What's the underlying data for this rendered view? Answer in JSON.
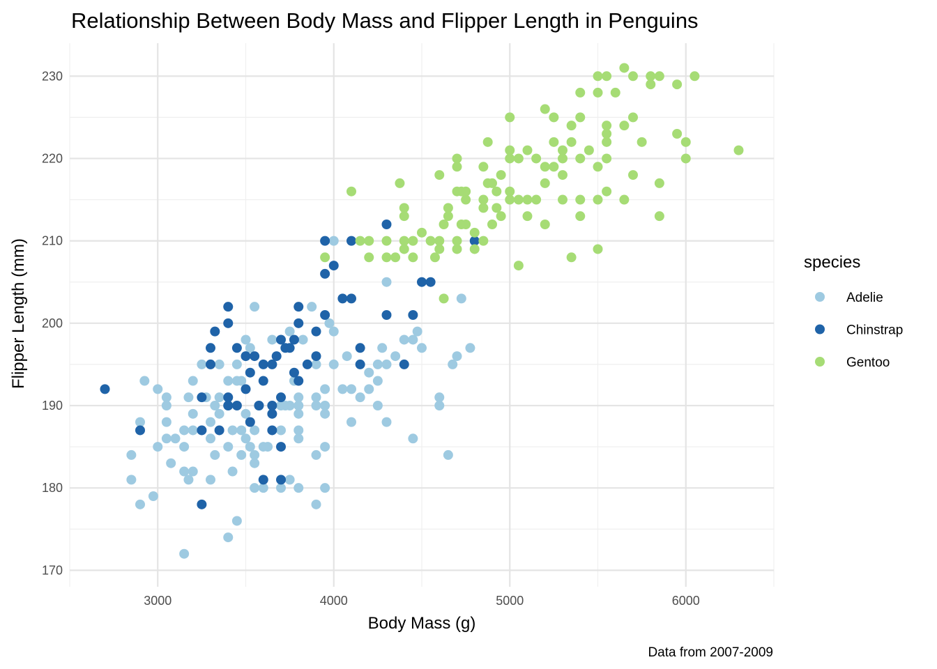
{
  "chart_data": {
    "type": "scatter",
    "title": "Relationship Between Body Mass and Flipper Length in Penguins",
    "xlabel": "Body Mass (g)",
    "ylabel": "Flipper Length (mm)",
    "caption": "Data from 2007-2009",
    "xlim": [
      2500,
      6500
    ],
    "ylim": [
      168,
      234
    ],
    "xticks": [
      3000,
      4000,
      5000,
      6000
    ],
    "yticks": [
      170,
      180,
      190,
      200,
      210,
      220,
      230
    ],
    "grid": true,
    "legend": {
      "title": "species",
      "placement": "right"
    },
    "series": [
      {
        "name": "Adelie",
        "color": "#9ecae1",
        "points": [
          [
            2850,
            181
          ],
          [
            2850,
            184
          ],
          [
            2900,
            178
          ],
          [
            2900,
            188
          ],
          [
            2925,
            193
          ],
          [
            2975,
            179
          ],
          [
            3000,
            185
          ],
          [
            3000,
            192
          ],
          [
            3050,
            186
          ],
          [
            3050,
            188
          ],
          [
            3050,
            190
          ],
          [
            3050,
            191
          ],
          [
            3075,
            183
          ],
          [
            3100,
            186
          ],
          [
            3150,
            172
          ],
          [
            3150,
            182
          ],
          [
            3150,
            185
          ],
          [
            3150,
            187
          ],
          [
            3175,
            181
          ],
          [
            3175,
            191
          ],
          [
            3200,
            182
          ],
          [
            3200,
            189
          ],
          [
            3200,
            193
          ],
          [
            3200,
            187
          ],
          [
            3250,
            195
          ],
          [
            3250,
            187
          ],
          [
            3275,
            191
          ],
          [
            3300,
            181
          ],
          [
            3300,
            186
          ],
          [
            3300,
            188
          ],
          [
            3300,
            195
          ],
          [
            3325,
            190
          ],
          [
            3325,
            184
          ],
          [
            3350,
            189
          ],
          [
            3350,
            191
          ],
          [
            3350,
            195
          ],
          [
            3400,
            174
          ],
          [
            3400,
            185
          ],
          [
            3400,
            193
          ],
          [
            3400,
            190
          ],
          [
            3425,
            182
          ],
          [
            3425,
            187
          ],
          [
            3450,
            176
          ],
          [
            3450,
            193
          ],
          [
            3450,
            195
          ],
          [
            3475,
            184
          ],
          [
            3475,
            187
          ],
          [
            3475,
            193
          ],
          [
            3500,
            186
          ],
          [
            3500,
            189
          ],
          [
            3500,
            198
          ],
          [
            3500,
            196
          ],
          [
            3525,
            185
          ],
          [
            3525,
            197
          ],
          [
            3550,
            180
          ],
          [
            3550,
            184
          ],
          [
            3550,
            187
          ],
          [
            3550,
            202
          ],
          [
            3550,
            183
          ],
          [
            3575,
            190
          ],
          [
            3600,
            180
          ],
          [
            3600,
            185
          ],
          [
            3625,
            185
          ],
          [
            3650,
            190
          ],
          [
            3650,
            198
          ],
          [
            3700,
            180
          ],
          [
            3700,
            190
          ],
          [
            3700,
            187
          ],
          [
            3725,
            190
          ],
          [
            3750,
            181
          ],
          [
            3750,
            190
          ],
          [
            3750,
            199
          ],
          [
            3775,
            193
          ],
          [
            3800,
            180
          ],
          [
            3800,
            186
          ],
          [
            3800,
            187
          ],
          [
            3800,
            189
          ],
          [
            3800,
            190
          ],
          [
            3800,
            191
          ],
          [
            3825,
            198
          ],
          [
            3875,
            202
          ],
          [
            3900,
            178
          ],
          [
            3900,
            184
          ],
          [
            3900,
            191
          ],
          [
            3900,
            190
          ],
          [
            3900,
            195
          ],
          [
            3950,
            180
          ],
          [
            3950,
            185
          ],
          [
            3950,
            189
          ],
          [
            3950,
            190
          ],
          [
            3950,
            192
          ],
          [
            3975,
            200
          ],
          [
            4000,
            199
          ],
          [
            4000,
            195
          ],
          [
            4000,
            210
          ],
          [
            4050,
            192
          ],
          [
            4075,
            196
          ],
          [
            4100,
            188
          ],
          [
            4100,
            192
          ],
          [
            4150,
            191
          ],
          [
            4200,
            192
          ],
          [
            4200,
            194
          ],
          [
            4250,
            190
          ],
          [
            4250,
            193
          ],
          [
            4250,
            195
          ],
          [
            4275,
            197
          ],
          [
            4300,
            188
          ],
          [
            4300,
            195
          ],
          [
            4300,
            205
          ],
          [
            4350,
            196
          ],
          [
            4400,
            198
          ],
          [
            4450,
            186
          ],
          [
            4450,
            198
          ],
          [
            4475,
            199
          ],
          [
            4500,
            197
          ],
          [
            4600,
            190
          ],
          [
            4600,
            191
          ],
          [
            4650,
            184
          ],
          [
            4675,
            195
          ],
          [
            4700,
            196
          ],
          [
            4725,
            203
          ],
          [
            4775,
            197
          ]
        ]
      },
      {
        "name": "Chinstrap",
        "color": "#1f63a8",
        "points": [
          [
            2700,
            192
          ],
          [
            2900,
            187
          ],
          [
            3250,
            191
          ],
          [
            3250,
            187
          ],
          [
            3250,
            178
          ],
          [
            3300,
            195
          ],
          [
            3300,
            197
          ],
          [
            3325,
            199
          ],
          [
            3350,
            187
          ],
          [
            3400,
            202
          ],
          [
            3400,
            200
          ],
          [
            3400,
            191
          ],
          [
            3400,
            190
          ],
          [
            3450,
            197
          ],
          [
            3450,
            190
          ],
          [
            3500,
            196
          ],
          [
            3500,
            192
          ],
          [
            3525,
            194
          ],
          [
            3525,
            188
          ],
          [
            3550,
            196
          ],
          [
            3575,
            190
          ],
          [
            3600,
            195
          ],
          [
            3600,
            181
          ],
          [
            3600,
            193
          ],
          [
            3650,
            195
          ],
          [
            3650,
            190
          ],
          [
            3650,
            187
          ],
          [
            3650,
            189
          ],
          [
            3675,
            196
          ],
          [
            3700,
            198
          ],
          [
            3700,
            191
          ],
          [
            3700,
            185
          ],
          [
            3700,
            181
          ],
          [
            3725,
            197
          ],
          [
            3750,
            197
          ],
          [
            3775,
            198
          ],
          [
            3775,
            194
          ],
          [
            3800,
            193
          ],
          [
            3800,
            200
          ],
          [
            3800,
            202
          ],
          [
            3850,
            195
          ],
          [
            3900,
            196
          ],
          [
            3900,
            199
          ],
          [
            3950,
            201
          ],
          [
            3950,
            206
          ],
          [
            3950,
            210
          ],
          [
            4000,
            207
          ],
          [
            4050,
            203
          ],
          [
            4100,
            203
          ],
          [
            4100,
            210
          ],
          [
            4150,
            197
          ],
          [
            4150,
            195
          ],
          [
            4300,
            212
          ],
          [
            4300,
            201
          ],
          [
            4400,
            195
          ],
          [
            4450,
            201
          ],
          [
            4500,
            205
          ],
          [
            4550,
            205
          ],
          [
            4800,
            210
          ]
        ]
      },
      {
        "name": "Gentoo",
        "color": "#a6dc75",
        "points": [
          [
            3950,
            208
          ],
          [
            4100,
            216
          ],
          [
            4150,
            210
          ],
          [
            4200,
            208
          ],
          [
            4200,
            210
          ],
          [
            4300,
            208
          ],
          [
            4300,
            210
          ],
          [
            4350,
            208
          ],
          [
            4375,
            217
          ],
          [
            4400,
            209
          ],
          [
            4400,
            210
          ],
          [
            4400,
            213
          ],
          [
            4400,
            214
          ],
          [
            4450,
            208
          ],
          [
            4450,
            210
          ],
          [
            4500,
            211
          ],
          [
            4550,
            210
          ],
          [
            4575,
            208
          ],
          [
            4600,
            209
          ],
          [
            4600,
            210
          ],
          [
            4600,
            218
          ],
          [
            4625,
            203
          ],
          [
            4625,
            212
          ],
          [
            4650,
            213
          ],
          [
            4650,
            214
          ],
          [
            4700,
            209
          ],
          [
            4700,
            210
          ],
          [
            4700,
            216
          ],
          [
            4700,
            219
          ],
          [
            4700,
            220
          ],
          [
            4725,
            212
          ],
          [
            4725,
            216
          ],
          [
            4750,
            212
          ],
          [
            4750,
            215
          ],
          [
            4750,
            216
          ],
          [
            4800,
            209
          ],
          [
            4800,
            211
          ],
          [
            4850,
            210
          ],
          [
            4850,
            214
          ],
          [
            4850,
            215
          ],
          [
            4850,
            219
          ],
          [
            4875,
            217
          ],
          [
            4875,
            222
          ],
          [
            4900,
            212
          ],
          [
            4900,
            217
          ],
          [
            4925,
            214
          ],
          [
            4925,
            216
          ],
          [
            4950,
            213
          ],
          [
            4950,
            218
          ],
          [
            5000,
            215
          ],
          [
            5000,
            216
          ],
          [
            5000,
            220
          ],
          [
            5000,
            221
          ],
          [
            5000,
            225
          ],
          [
            5050,
            207
          ],
          [
            5050,
            215
          ],
          [
            5050,
            220
          ],
          [
            5100,
            213
          ],
          [
            5100,
            215
          ],
          [
            5100,
            221
          ],
          [
            5150,
            215
          ],
          [
            5150,
            220
          ],
          [
            5200,
            212
          ],
          [
            5200,
            217
          ],
          [
            5200,
            219
          ],
          [
            5200,
            226
          ],
          [
            5250,
            219
          ],
          [
            5250,
            222
          ],
          [
            5250,
            225
          ],
          [
            5300,
            215
          ],
          [
            5300,
            218
          ],
          [
            5300,
            220
          ],
          [
            5300,
            221
          ],
          [
            5350,
            208
          ],
          [
            5350,
            222
          ],
          [
            5350,
            224
          ],
          [
            5400,
            213
          ],
          [
            5400,
            215
          ],
          [
            5400,
            220
          ],
          [
            5400,
            225
          ],
          [
            5400,
            228
          ],
          [
            5450,
            221
          ],
          [
            5500,
            209
          ],
          [
            5500,
            215
          ],
          [
            5500,
            219
          ],
          [
            5500,
            228
          ],
          [
            5500,
            230
          ],
          [
            5550,
            216
          ],
          [
            5550,
            220
          ],
          [
            5550,
            222
          ],
          [
            5550,
            223
          ],
          [
            5550,
            224
          ],
          [
            5550,
            230
          ],
          [
            5600,
            228
          ],
          [
            5650,
            215
          ],
          [
            5650,
            224
          ],
          [
            5650,
            231
          ],
          [
            5700,
            218
          ],
          [
            5700,
            225
          ],
          [
            5700,
            230
          ],
          [
            5750,
            222
          ],
          [
            5800,
            229
          ],
          [
            5800,
            230
          ],
          [
            5850,
            213
          ],
          [
            5850,
            217
          ],
          [
            5850,
            230
          ],
          [
            5950,
            223
          ],
          [
            5950,
            229
          ],
          [
            6000,
            220
          ],
          [
            6000,
            222
          ],
          [
            6050,
            230
          ],
          [
            6300,
            221
          ]
        ]
      }
    ]
  }
}
